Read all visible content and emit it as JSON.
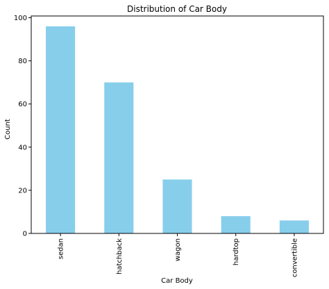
{
  "chart_data": {
    "type": "bar",
    "title": "Distribution of Car Body",
    "xlabel": "Car Body",
    "ylabel": "Count",
    "categories": [
      "sedan",
      "hatchback",
      "wagon",
      "hardtop",
      "convertible"
    ],
    "values": [
      96,
      70,
      25,
      8,
      6
    ],
    "ylim": [
      0,
      100.8
    ],
    "yticks": [
      0,
      20,
      40,
      60,
      80,
      100
    ],
    "bar_color": "#87ceeb",
    "grid": false,
    "legend": false
  }
}
